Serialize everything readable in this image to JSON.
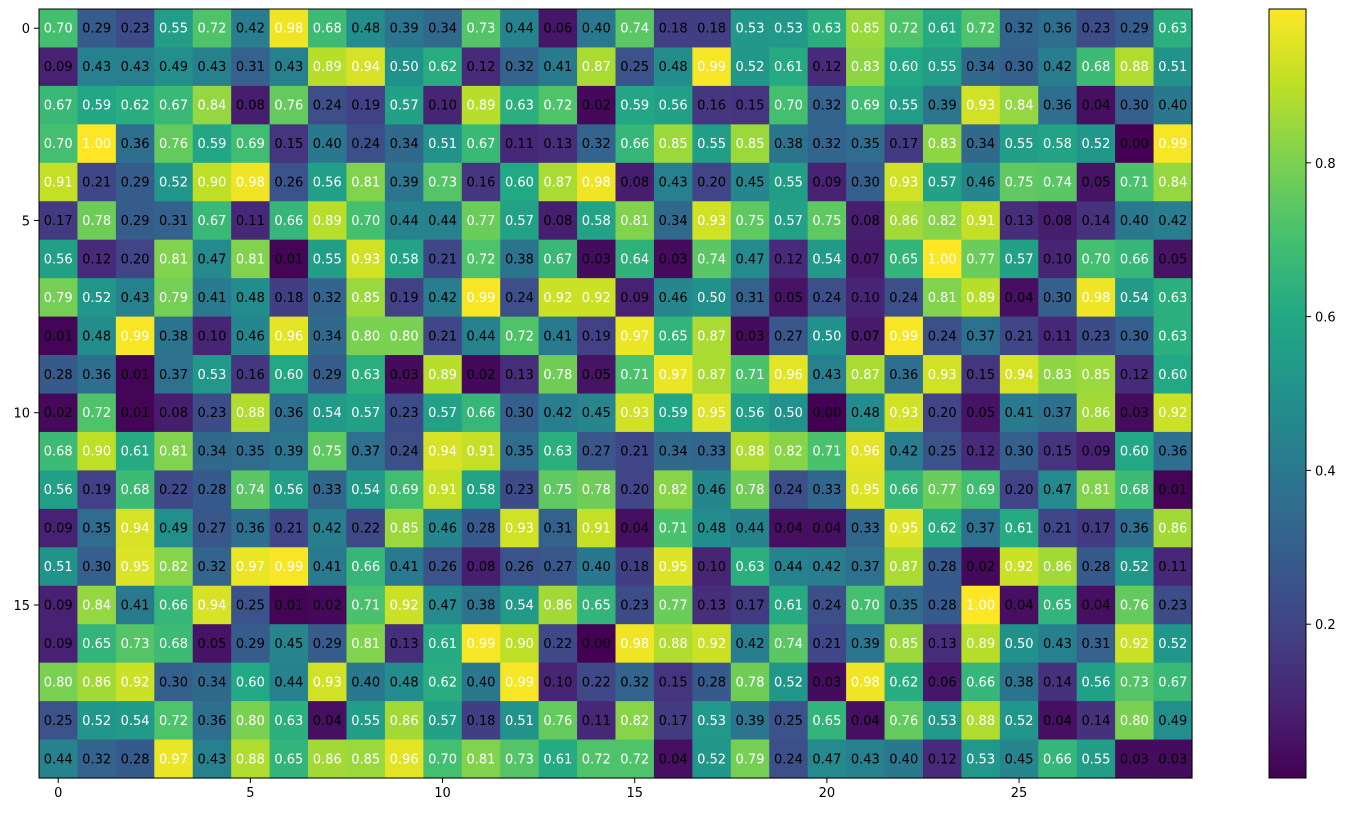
{
  "chart_data": {
    "type": "heatmap",
    "colormap": "viridis",
    "rows": 20,
    "cols": 30,
    "values": [
      [
        0.7,
        0.29,
        0.23,
        0.55,
        0.72,
        0.42,
        0.98,
        0.68,
        0.48,
        0.39,
        0.34,
        0.73,
        0.44,
        0.06,
        0.4,
        0.74,
        0.18,
        0.18,
        0.53,
        0.53,
        0.63,
        0.85,
        0.72,
        0.61,
        0.72,
        0.32,
        0.36,
        0.23,
        0.29,
        0.63
      ],
      [
        0.09,
        0.43,
        0.43,
        0.49,
        0.43,
        0.31,
        0.43,
        0.89,
        0.94,
        0.5,
        0.62,
        0.12,
        0.32,
        0.41,
        0.87,
        0.25,
        0.48,
        0.99,
        0.52,
        0.61,
        0.12,
        0.83,
        0.6,
        0.55,
        0.34,
        0.3,
        0.42,
        0.68,
        0.88,
        0.51
      ],
      [
        0.67,
        0.59,
        0.62,
        0.67,
        0.84,
        0.08,
        0.76,
        0.24,
        0.19,
        0.57,
        0.1,
        0.89,
        0.63,
        0.72,
        0.02,
        0.59,
        0.56,
        0.16,
        0.15,
        0.7,
        0.32,
        0.69,
        0.55,
        0.39,
        0.93,
        0.84,
        0.36,
        0.04,
        0.3,
        0.4
      ],
      [
        0.7,
        1.0,
        0.36,
        0.76,
        0.59,
        0.69,
        0.15,
        0.4,
        0.24,
        0.34,
        0.51,
        0.67,
        0.11,
        0.13,
        0.32,
        0.66,
        0.85,
        0.55,
        0.85,
        0.38,
        0.32,
        0.35,
        0.17,
        0.83,
        0.34,
        0.55,
        0.58,
        0.52,
        0.0,
        0.99
      ],
      [
        0.91,
        0.21,
        0.29,
        0.52,
        0.9,
        0.98,
        0.26,
        0.56,
        0.81,
        0.39,
        0.73,
        0.16,
        0.6,
        0.87,
        0.98,
        0.08,
        0.43,
        0.2,
        0.45,
        0.55,
        0.09,
        0.3,
        0.93,
        0.57,
        0.46,
        0.75,
        0.74,
        0.05,
        0.71,
        0.84
      ],
      [
        0.17,
        0.78,
        0.29,
        0.31,
        0.67,
        0.11,
        0.66,
        0.89,
        0.7,
        0.44,
        0.44,
        0.77,
        0.57,
        0.08,
        0.58,
        0.81,
        0.34,
        0.93,
        0.75,
        0.57,
        0.75,
        0.08,
        0.86,
        0.82,
        0.91,
        0.13,
        0.08,
        0.14,
        0.4,
        0.42
      ],
      [
        0.56,
        0.12,
        0.2,
        0.81,
        0.47,
        0.81,
        0.01,
        0.55,
        0.93,
        0.58,
        0.21,
        0.72,
        0.38,
        0.67,
        0.03,
        0.64,
        0.03,
        0.74,
        0.47,
        0.12,
        0.54,
        0.07,
        0.65,
        1.0,
        0.77,
        0.57,
        0.1,
        0.7,
        0.66,
        0.05
      ],
      [
        0.79,
        0.52,
        0.43,
        0.79,
        0.41,
        0.48,
        0.18,
        0.32,
        0.85,
        0.19,
        0.42,
        0.99,
        0.24,
        0.92,
        0.92,
        0.09,
        0.46,
        0.5,
        0.31,
        0.05,
        0.24,
        0.1,
        0.24,
        0.81,
        0.89,
        0.04,
        0.3,
        0.98,
        0.54,
        0.63
      ],
      [
        0.01,
        0.48,
        0.99,
        0.38,
        0.1,
        0.46,
        0.96,
        0.34,
        0.8,
        0.8,
        0.21,
        0.44,
        0.72,
        0.41,
        0.19,
        0.97,
        0.65,
        0.87,
        0.03,
        0.27,
        0.5,
        0.07,
        0.99,
        0.24,
        0.37,
        0.21,
        0.11,
        0.23,
        0.3,
        0.63
      ],
      [
        0.28,
        0.36,
        0.01,
        0.37,
        0.53,
        0.16,
        0.6,
        0.29,
        0.63,
        0.03,
        0.89,
        0.02,
        0.13,
        0.78,
        0.05,
        0.71,
        0.97,
        0.87,
        0.71,
        0.96,
        0.43,
        0.87,
        0.36,
        0.93,
        0.15,
        0.94,
        0.83,
        0.85,
        0.12,
        0.6
      ],
      [
        0.02,
        0.72,
        0.01,
        0.08,
        0.23,
        0.88,
        0.36,
        0.54,
        0.57,
        0.23,
        0.57,
        0.66,
        0.3,
        0.42,
        0.45,
        0.93,
        0.59,
        0.95,
        0.56,
        0.5,
        0.0,
        0.48,
        0.93,
        0.2,
        0.05,
        0.41,
        0.37,
        0.86,
        0.03,
        0.92
      ],
      [
        0.68,
        0.9,
        0.61,
        0.81,
        0.34,
        0.35,
        0.39,
        0.75,
        0.37,
        0.24,
        0.94,
        0.91,
        0.35,
        0.63,
        0.27,
        0.21,
        0.34,
        0.33,
        0.88,
        0.82,
        0.71,
        0.96,
        0.42,
        0.25,
        0.12,
        0.3,
        0.15,
        0.09,
        0.6,
        0.36
      ],
      [
        0.56,
        0.19,
        0.68,
        0.22,
        0.28,
        0.74,
        0.56,
        0.33,
        0.54,
        0.69,
        0.91,
        0.58,
        0.23,
        0.75,
        0.78,
        0.2,
        0.82,
        0.46,
        0.78,
        0.24,
        0.33,
        0.95,
        0.66,
        0.77,
        0.69,
        0.2,
        0.47,
        0.81,
        0.68,
        0.01
      ],
      [
        0.09,
        0.35,
        0.94,
        0.49,
        0.27,
        0.36,
        0.21,
        0.42,
        0.22,
        0.85,
        0.46,
        0.28,
        0.93,
        0.31,
        0.91,
        0.04,
        0.71,
        0.48,
        0.44,
        0.04,
        0.04,
        0.33,
        0.95,
        0.62,
        0.37,
        0.61,
        0.21,
        0.17,
        0.36,
        0.86
      ],
      [
        0.51,
        0.3,
        0.95,
        0.82,
        0.32,
        0.97,
        0.99,
        0.41,
        0.66,
        0.41,
        0.26,
        0.08,
        0.26,
        0.27,
        0.4,
        0.18,
        0.95,
        0.1,
        0.63,
        0.44,
        0.42,
        0.37,
        0.87,
        0.28,
        0.02,
        0.92,
        0.86,
        0.28,
        0.52,
        0.11
      ],
      [
        0.09,
        0.84,
        0.41,
        0.66,
        0.94,
        0.25,
        0.01,
        0.02,
        0.71,
        0.92,
        0.47,
        0.38,
        0.54,
        0.86,
        0.65,
        0.23,
        0.77,
        0.13,
        0.17,
        0.61,
        0.24,
        0.7,
        0.35,
        0.28,
        1.0,
        0.04,
        0.65,
        0.04,
        0.76,
        0.23
      ],
      [
        0.09,
        0.65,
        0.73,
        0.68,
        0.05,
        0.29,
        0.45,
        0.29,
        0.81,
        0.13,
        0.61,
        0.99,
        0.9,
        0.22,
        0.0,
        0.98,
        0.88,
        0.92,
        0.42,
        0.74,
        0.21,
        0.39,
        0.85,
        0.13,
        0.89,
        0.5,
        0.43,
        0.31,
        0.92,
        0.52
      ],
      [
        0.8,
        0.86,
        0.92,
        0.3,
        0.34,
        0.6,
        0.44,
        0.93,
        0.4,
        0.48,
        0.62,
        0.4,
        0.99,
        0.1,
        0.22,
        0.32,
        0.15,
        0.28,
        0.78,
        0.52,
        0.03,
        0.98,
        0.62,
        0.06,
        0.66,
        0.38,
        0.14,
        0.56,
        0.73,
        0.67
      ],
      [
        0.25,
        0.52,
        0.54,
        0.72,
        0.36,
        0.8,
        0.63,
        0.04,
        0.55,
        0.86,
        0.57,
        0.18,
        0.51,
        0.76,
        0.11,
        0.82,
        0.17,
        0.53,
        0.39,
        0.25,
        0.65,
        0.04,
        0.76,
        0.53,
        0.88,
        0.52,
        0.04,
        0.14,
        0.8,
        0.49
      ],
      [
        0.44,
        0.32,
        0.28,
        0.97,
        0.43,
        0.88,
        0.65,
        0.86,
        0.85,
        0.96,
        0.7,
        0.81,
        0.73,
        0.61,
        0.72,
        0.72,
        0.04,
        0.52,
        0.79,
        0.24,
        0.47,
        0.43,
        0.4,
        0.12,
        0.53,
        0.45,
        0.66,
        0.55,
        0.03,
        0.03
      ]
    ],
    "x_ticks": [
      0,
      5,
      10,
      15,
      20,
      25
    ],
    "y_ticks": [
      0,
      5,
      10,
      15
    ],
    "colorbar_ticks": [
      0.2,
      0.4,
      0.6,
      0.8
    ],
    "vmin": 0.0,
    "vmax": 1.0,
    "annotations": true,
    "annotation_format": "0.00",
    "legend": "colorbar-right"
  }
}
